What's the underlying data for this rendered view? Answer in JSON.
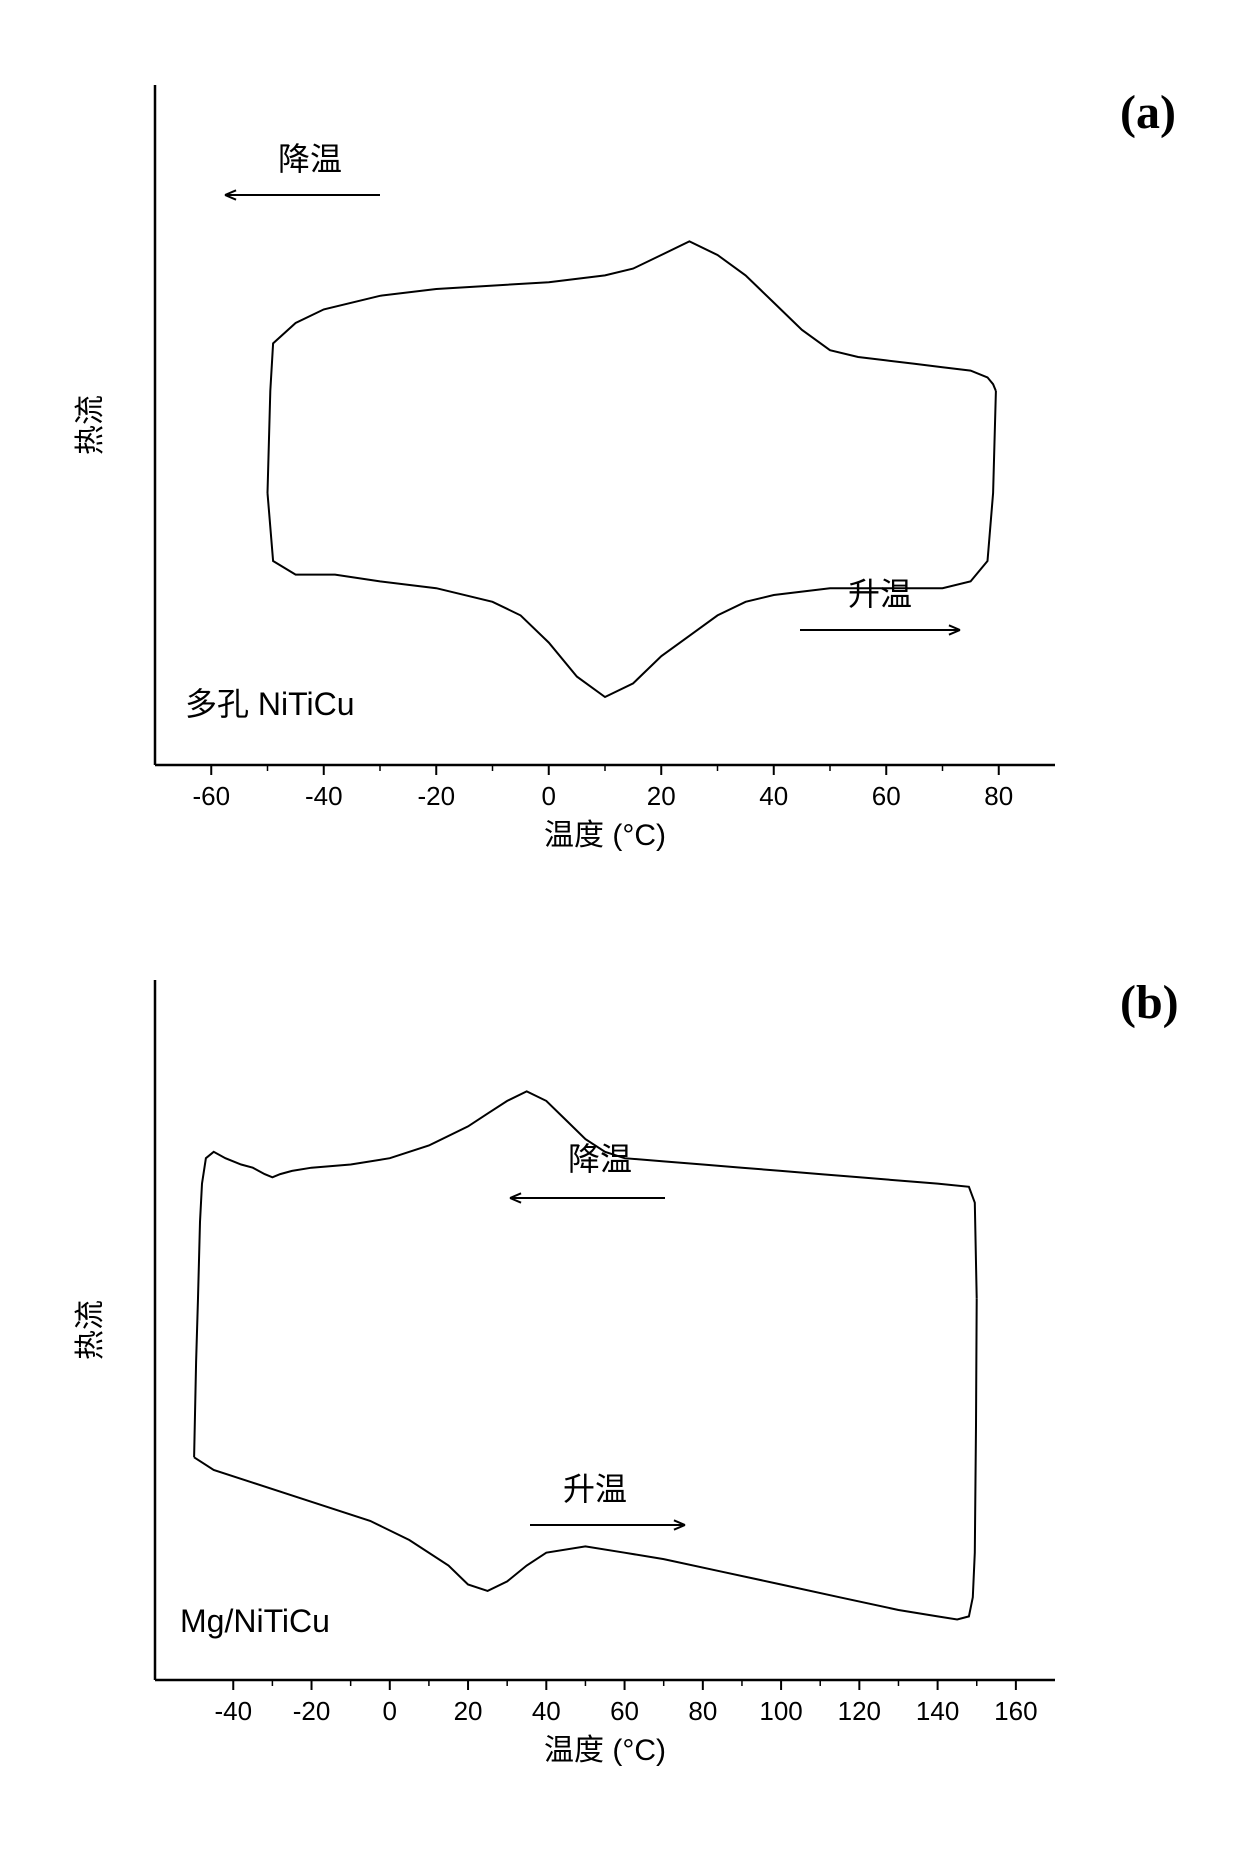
{
  "figure_a": {
    "label": "(a)",
    "type": "line",
    "xlabel": "温度 (°C)",
    "ylabel": "热流",
    "xlim": [
      -70,
      90
    ],
    "xticks": [
      -60,
      -40,
      -20,
      0,
      20,
      40,
      60,
      80
    ],
    "sample_label": "多孔 NiTiCu",
    "cooling_label": "降温",
    "heating_label": "升温",
    "line_color": "#000000",
    "line_width": 2,
    "background_color": "#ffffff",
    "label_fontsize": 30,
    "tick_fontsize": 26,
    "annotation_fontsize": 32,
    "cooling_curve": [
      [
        -50,
        80
      ],
      [
        -49,
        70
      ],
      [
        -45,
        68
      ],
      [
        -38,
        68
      ],
      [
        -30,
        67
      ],
      [
        -20,
        66
      ],
      [
        -10,
        64
      ],
      [
        -5,
        62
      ],
      [
        0,
        58
      ],
      [
        5,
        53
      ],
      [
        10,
        50
      ],
      [
        15,
        52
      ],
      [
        20,
        56
      ],
      [
        25,
        59
      ],
      [
        30,
        62
      ],
      [
        35,
        64
      ],
      [
        40,
        65
      ],
      [
        50,
        66
      ],
      [
        60,
        66
      ],
      [
        70,
        66
      ],
      [
        75,
        67
      ],
      [
        78,
        70
      ],
      [
        79,
        80
      ],
      [
        79.5,
        95
      ]
    ],
    "heating_curve": [
      [
        -50,
        80
      ],
      [
        -49.5,
        95
      ],
      [
        -49,
        102
      ],
      [
        -45,
        105
      ],
      [
        -40,
        107
      ],
      [
        -30,
        109
      ],
      [
        -20,
        110
      ],
      [
        -10,
        110.5
      ],
      [
        0,
        111
      ],
      [
        10,
        112
      ],
      [
        15,
        113
      ],
      [
        20,
        115
      ],
      [
        25,
        117
      ],
      [
        30,
        115
      ],
      [
        35,
        112
      ],
      [
        40,
        108
      ],
      [
        45,
        104
      ],
      [
        50,
        101
      ],
      [
        55,
        100
      ],
      [
        60,
        99.5
      ],
      [
        65,
        99
      ],
      [
        70,
        98.5
      ],
      [
        75,
        98
      ],
      [
        78,
        97
      ],
      [
        79,
        96
      ],
      [
        79.5,
        95
      ]
    ]
  },
  "figure_b": {
    "label": "(b)",
    "type": "line",
    "xlabel": "温度 (°C)",
    "ylabel": "热流",
    "xlim": [
      -60,
      170
    ],
    "xticks": [
      -40,
      -20,
      0,
      20,
      40,
      60,
      80,
      100,
      120,
      140,
      160
    ],
    "sample_label": "Mg/NiTiCu",
    "cooling_label": "降温",
    "heating_label": "升温",
    "line_color": "#000000",
    "line_width": 2,
    "background_color": "#ffffff",
    "label_fontsize": 30,
    "tick_fontsize": 26,
    "annotation_fontsize": 32,
    "cooling_curve": [
      [
        -50,
        75
      ],
      [
        -45,
        73
      ],
      [
        -35,
        71
      ],
      [
        -20,
        68
      ],
      [
        -5,
        65
      ],
      [
        5,
        62
      ],
      [
        15,
        58
      ],
      [
        20,
        55
      ],
      [
        25,
        54
      ],
      [
        30,
        55.5
      ],
      [
        35,
        58
      ],
      [
        40,
        60
      ],
      [
        50,
        61
      ],
      [
        60,
        60
      ],
      [
        70,
        59
      ],
      [
        85,
        57
      ],
      [
        100,
        55
      ],
      [
        115,
        53
      ],
      [
        130,
        51
      ],
      [
        140,
        50
      ],
      [
        145,
        49.5
      ],
      [
        148,
        50
      ],
      [
        149,
        53
      ],
      [
        149.5,
        60
      ],
      [
        149.8,
        80
      ],
      [
        150,
        100
      ]
    ],
    "heating_curve": [
      [
        -50,
        75
      ],
      [
        -49.5,
        90
      ],
      [
        -49,
        100
      ],
      [
        -48.5,
        112
      ],
      [
        -48,
        118
      ],
      [
        -47,
        122
      ],
      [
        -45,
        123
      ],
      [
        -42,
        122
      ],
      [
        -38,
        121
      ],
      [
        -35,
        120.5
      ],
      [
        -32,
        119.5
      ],
      [
        -30,
        119
      ],
      [
        -28,
        119.5
      ],
      [
        -25,
        120
      ],
      [
        -20,
        120.5
      ],
      [
        -10,
        121
      ],
      [
        0,
        122
      ],
      [
        10,
        124
      ],
      [
        20,
        127
      ],
      [
        25,
        129
      ],
      [
        30,
        131
      ],
      [
        35,
        132.5
      ],
      [
        40,
        131
      ],
      [
        45,
        128
      ],
      [
        50,
        125
      ],
      [
        55,
        123
      ],
      [
        60,
        122
      ],
      [
        70,
        121.5
      ],
      [
        80,
        121
      ],
      [
        90,
        120.5
      ],
      [
        100,
        120
      ],
      [
        110,
        119.5
      ],
      [
        120,
        119
      ],
      [
        130,
        118.5
      ],
      [
        140,
        118
      ],
      [
        148,
        117.5
      ],
      [
        149.5,
        115
      ],
      [
        150,
        100
      ]
    ]
  }
}
